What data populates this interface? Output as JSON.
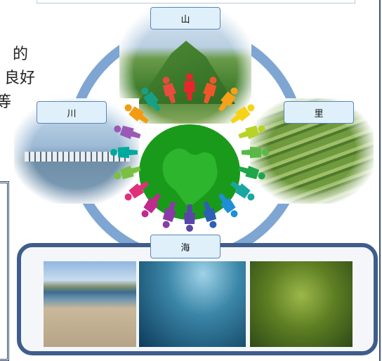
{
  "left_text": [
    "的",
    "良好",
    "等"
  ],
  "labels": {
    "mountain": "山",
    "river": "川",
    "village": "里",
    "sea": "海"
  },
  "colors": {
    "ring": "#7fa6d2",
    "label_bg": "#dff0fb",
    "label_border": "#5a86b8",
    "sea_panel_border": "#3f5d8c",
    "globe": "#1a9a1a"
  },
  "icons": {
    "center": "globe-with-people-ring",
    "mountain_photo": "mountain-photo",
    "river_photo": "bridge-river-photo",
    "village_photo": "rice-terrace-photo",
    "sea_photos": [
      "beach-photo",
      "fish-school-photo",
      "kelp-forest-photo"
    ]
  }
}
